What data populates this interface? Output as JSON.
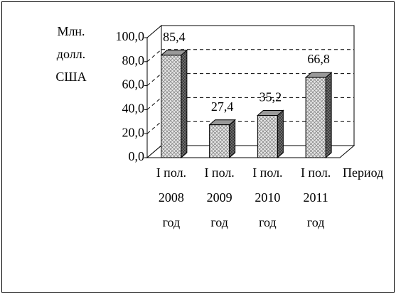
{
  "chart_data": {
    "type": "bar3d",
    "y_label": [
      "Млн.",
      "долл.",
      "США"
    ],
    "x_label": "Период",
    "categories": [
      [
        "I пол.",
        "2008",
        "год"
      ],
      [
        "I пол.",
        "2009",
        "год"
      ],
      [
        "I пол.",
        "2010",
        "год"
      ],
      [
        "I  пол.",
        "2011",
        "год"
      ]
    ],
    "values": [
      85.4,
      27.4,
      35.2,
      66.8
    ],
    "value_labels": [
      "85,4",
      "27,4",
      "35,2",
      "66,8"
    ],
    "ylim": [
      0,
      100
    ],
    "yticks": [
      {
        "value": 0,
        "label": "0,0"
      },
      {
        "value": 20,
        "label": "20,0"
      },
      {
        "value": 40,
        "label": "40,0"
      },
      {
        "value": 60,
        "label": "60,0"
      },
      {
        "value": 80,
        "label": "80,0"
      },
      {
        "value": 100,
        "label": "100,0"
      }
    ],
    "grid": true
  }
}
